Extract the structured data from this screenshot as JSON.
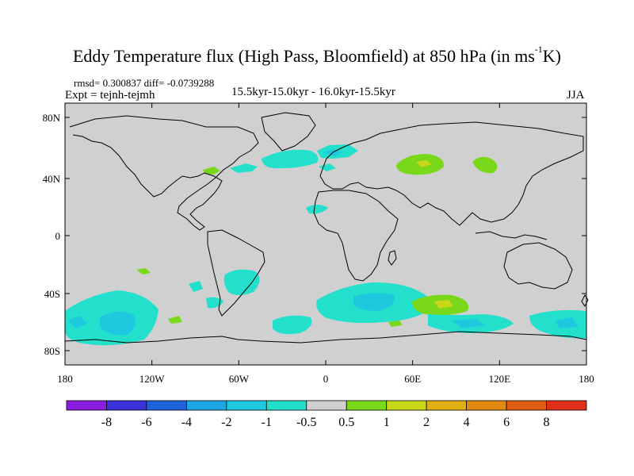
{
  "figure": {
    "title": "Eddy Temperature flux (High Pass, Bloomfield) at 850 hPa (in ms",
    "title_sup": "-1",
    "title_end": "K)",
    "stats": "rmsd= 0.300837 diff= -0.0739288",
    "experiment": "Expt = tejnh-tejmh",
    "period": "15.5kyr-15.0kyr - 16.0kyr-15.5kyr",
    "season": "JJA"
  },
  "axes": {
    "x_ticks": [
      "180",
      "120W",
      "60W",
      "0",
      "60E",
      "120E",
      "180"
    ],
    "y_ticks": [
      "80N",
      "40N",
      "0",
      "40S",
      "80S"
    ]
  },
  "colorbar": {
    "labels": [
      "-8",
      "-6",
      "-4",
      "-2",
      "-1",
      "-0.5",
      "0.5",
      "1",
      "2",
      "4",
      "6",
      "8"
    ],
    "colors": [
      "#8a1de0",
      "#3a32d8",
      "#1d63d9",
      "#1ca6e3",
      "#1ec9e0",
      "#22e0cc",
      "#d0d0d0",
      "#7ad81a",
      "#c8d818",
      "#e0b012",
      "#e08a12",
      "#e05e12",
      "#e0301a"
    ]
  },
  "map_colors": {
    "background": "#d0d0d0",
    "neg_weak": "#22e0cc",
    "neg_mid": "#1ec9e0",
    "neg_strong": "#1ca6e3",
    "pos_weak": "#7ad81a",
    "pos_mid": "#c8d818",
    "coast": "#000000"
  }
}
